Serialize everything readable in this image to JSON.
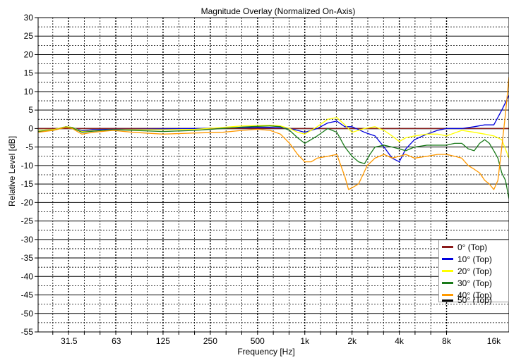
{
  "chart_data": {
    "type": "line",
    "title": "Magnitude Overlay (Normalized On-Axis)",
    "xlabel": "Frequency [Hz]",
    "ylabel": "Relative Level [dB]",
    "x_scale": "log",
    "xlim": [
      20,
      20000
    ],
    "ylim": [
      -55,
      30
    ],
    "y_ticks": [
      30,
      25,
      20,
      15,
      10,
      5,
      0,
      -5,
      -10,
      -15,
      -20,
      -25,
      -30,
      -35,
      -40,
      -45,
      -50,
      -55
    ],
    "x_ticks": [
      {
        "value": 31.5,
        "label": "31.5"
      },
      {
        "value": 63,
        "label": "63"
      },
      {
        "value": 125,
        "label": "125"
      },
      {
        "value": 250,
        "label": "250"
      },
      {
        "value": 500,
        "label": "500"
      },
      {
        "value": 1000,
        "label": "1k"
      },
      {
        "value": 2000,
        "label": "2k"
      },
      {
        "value": 4000,
        "label": "4k"
      },
      {
        "value": 8000,
        "label": "8k"
      },
      {
        "value": 16000,
        "label": "16k"
      }
    ],
    "grid": true,
    "legend_position": "bottom-right",
    "series": [
      {
        "name": "0° (Top)",
        "color": "#8b1a1a",
        "x": [
          20,
          20000
        ],
        "y": [
          0,
          0
        ]
      },
      {
        "name": "10° (Top)",
        "color": "#0000dd",
        "x": [
          20,
          25,
          30,
          33,
          38,
          45,
          60,
          80,
          125,
          200,
          300,
          400,
          500,
          600,
          700,
          800,
          900,
          1000,
          1200,
          1400,
          1600,
          1800,
          2000,
          2400,
          2800,
          3200,
          3600,
          4000,
          4400,
          5000,
          6000,
          7000,
          8000,
          10000,
          12000,
          14000,
          16000,
          18000,
          20000
        ],
        "y": [
          -0.5,
          -0.3,
          0.5,
          0.3,
          -0.6,
          -0.3,
          -0.2,
          -0.2,
          -0.1,
          0,
          0.2,
          0.2,
          0.3,
          0.3,
          0.2,
          0,
          -0.5,
          -1,
          0,
          1.5,
          2,
          0.5,
          0.5,
          -1,
          -2,
          -5,
          -8,
          -9,
          -5.5,
          -3,
          -1.5,
          -0.5,
          0,
          0,
          0.5,
          1,
          1,
          5,
          9
        ]
      },
      {
        "name": "20° (Top)",
        "color": "#ffff00",
        "x": [
          20,
          25,
          30,
          33,
          38,
          45,
          60,
          80,
          125,
          200,
          300,
          400,
          500,
          600,
          700,
          800,
          900,
          1000,
          1200,
          1400,
          1600,
          1800,
          2000,
          2400,
          2800,
          3200,
          3600,
          4000,
          4400,
          5000,
          6000,
          7000,
          8000,
          10000,
          12000,
          14000,
          16000,
          18000,
          20000
        ],
        "y": [
          -0.5,
          -0.3,
          0.5,
          0.3,
          -0.8,
          -0.6,
          -0.3,
          -0.3,
          -0.3,
          -0.2,
          0.3,
          0.7,
          0.8,
          0.9,
          0.7,
          0,
          -1,
          -1.5,
          0.5,
          2.5,
          3,
          1,
          -1,
          0,
          0.5,
          -0.5,
          -2,
          -3.5,
          -2.5,
          -2,
          -1.5,
          -1.5,
          -2,
          -0.5,
          -1,
          -1.5,
          -2,
          -3,
          -8
        ]
      },
      {
        "name": "30° (Top)",
        "color": "#1a7a1a",
        "x": [
          20,
          25,
          30,
          33,
          38,
          45,
          60,
          80,
          125,
          200,
          300,
          400,
          500,
          600,
          700,
          800,
          900,
          1000,
          1200,
          1400,
          1600,
          1800,
          2000,
          2200,
          2400,
          2600,
          2800,
          3200,
          3600,
          4000,
          4400,
          5000,
          6000,
          7000,
          8000,
          9000,
          10000,
          11000,
          12000,
          13000,
          14000,
          15000,
          16000,
          17000,
          18000,
          19000,
          20000
        ],
        "y": [
          -0.8,
          -0.5,
          0.4,
          0.2,
          -1,
          -0.7,
          -0.3,
          -0.5,
          -0.8,
          -0.5,
          0,
          0.4,
          0.6,
          0.7,
          0.5,
          -0.5,
          -2.5,
          -4,
          -2,
          0,
          -1,
          -5,
          -7.5,
          -9,
          -9.5,
          -7,
          -5,
          -4.5,
          -5,
          -5.5,
          -6,
          -5,
          -4.5,
          -4.5,
          -4.5,
          -4,
          -4,
          -5.5,
          -6,
          -4,
          -3,
          -4,
          -6,
          -8,
          -12,
          -14,
          -19
        ]
      },
      {
        "name": "40° (Top)",
        "color": "#ff9900",
        "x": [
          20,
          25,
          30,
          33,
          38,
          45,
          60,
          80,
          125,
          200,
          300,
          400,
          500,
          600,
          700,
          800,
          900,
          1000,
          1100,
          1200,
          1400,
          1600,
          1800,
          1900,
          2000,
          2200,
          2500,
          2800,
          3200,
          3600,
          4000,
          4400,
          5000,
          6000,
          7000,
          8000,
          9000,
          10000,
          11000,
          12000,
          13000,
          14000,
          15000,
          16000,
          17000,
          18000,
          19000,
          20000
        ],
        "y": [
          -1,
          -0.5,
          0.3,
          0,
          -1.5,
          -1,
          -0.5,
          -1,
          -1.5,
          -1.2,
          -1,
          -0.5,
          -0.2,
          -0.5,
          -1.5,
          -4,
          -7,
          -9,
          -9,
          -8,
          -7.5,
          -7,
          -13,
          -16.5,
          -16,
          -15,
          -10,
          -8,
          -7,
          -8,
          -7.5,
          -7,
          -8,
          -7.5,
          -7,
          -7,
          -7.5,
          -8,
          -10,
          -11,
          -12,
          -14,
          -15,
          -16.5,
          -14,
          -5,
          4,
          14
        ]
      },
      {
        "name": "50° (Top)",
        "color": "#000000",
        "x": [],
        "y": []
      }
    ]
  }
}
